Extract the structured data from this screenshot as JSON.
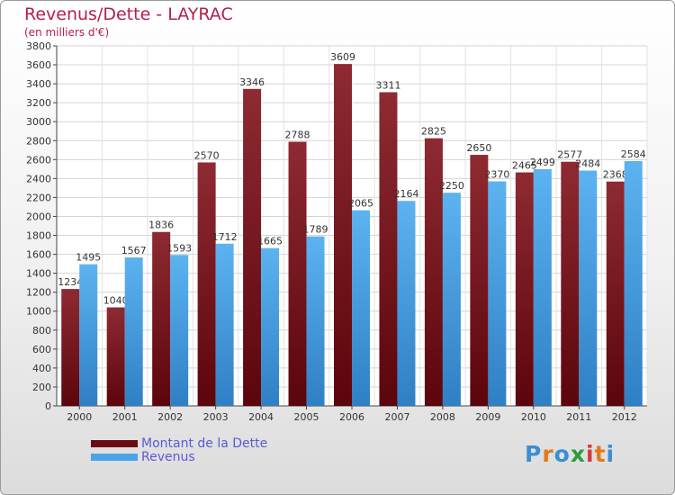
{
  "title": "Revenus/Dette - LAYRAC",
  "subtitle": "(en milliers d'€)",
  "logo": {
    "text": "Proxiti",
    "colors": [
      "#3a8fd1",
      "#e07a1c",
      "#3a8fd1",
      "#2e9c3c",
      "#d23a3a",
      "#e07a1c",
      "#3a8fd1"
    ]
  },
  "legend": {
    "items": [
      {
        "label": "Montant de la Dette",
        "color": "#6b0b12"
      },
      {
        "label": "Revenus",
        "color": "#4aa3e8"
      }
    ]
  },
  "chart_data": {
    "type": "bar",
    "categories": [
      "2000",
      "2001",
      "2002",
      "2003",
      "2004",
      "2005",
      "2006",
      "2007",
      "2008",
      "2009",
      "2010",
      "2011",
      "2012"
    ],
    "series": [
      {
        "name": "Montant de la Dette",
        "color": "#6b0b12",
        "values": [
          1234,
          1040,
          1836,
          2570,
          3346,
          2788,
          3609,
          3311,
          2825,
          2650,
          2465,
          2577,
          2368
        ]
      },
      {
        "name": "Revenus",
        "color": "#4aa3e8",
        "values": [
          1495,
          1567,
          1593,
          1712,
          1665,
          1789,
          2065,
          2164,
          2250,
          2370,
          2499,
          2484,
          2584
        ]
      }
    ],
    "ylim": [
      0,
      3800
    ],
    "ytick_step": 200,
    "yticks": [
      "0",
      "200",
      "400",
      "600",
      "800",
      "1000",
      "1200",
      "1400",
      "1600",
      "1800",
      "2000",
      "2200",
      "2400",
      "2600",
      "2800",
      "3000",
      "3200",
      "3400",
      "3600",
      "3800"
    ],
    "data_labels": [
      [
        "1234",
        "1040",
        "1836",
        "2570",
        "3346",
        "2788",
        "3609",
        "3311",
        "2825",
        "2650",
        "2465",
        "2577",
        "2368"
      ],
      [
        "1495",
        "1567",
        "1593",
        "1712",
        "1665",
        "1789",
        "2065",
        "2164",
        "2250",
        "2370",
        "2499",
        "2484",
        "2584"
      ]
    ],
    "grid": true,
    "legend_position": "bottom-left"
  }
}
